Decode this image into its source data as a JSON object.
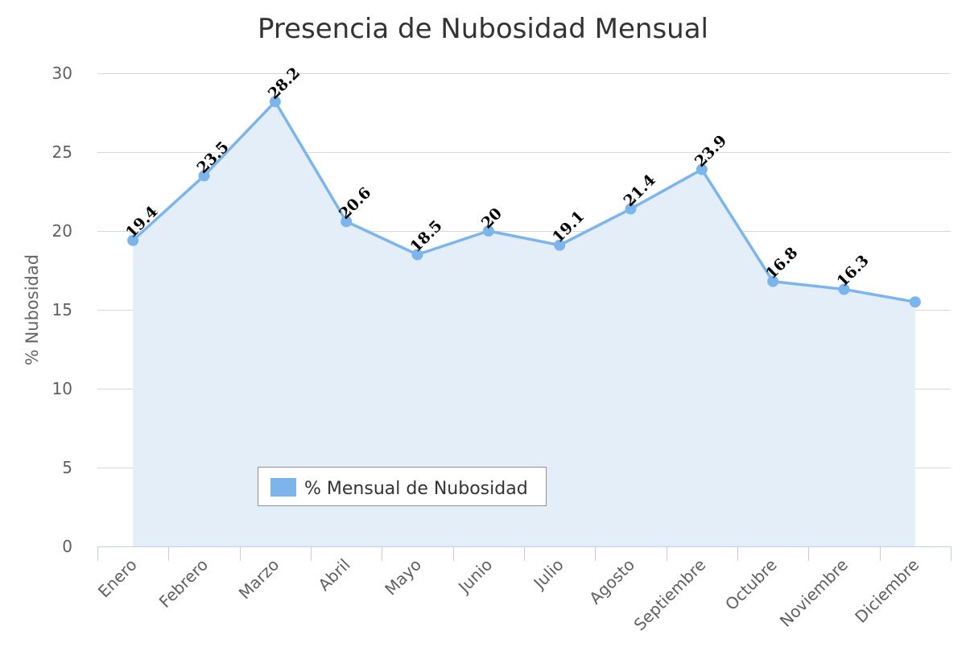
{
  "chart_data": {
    "type": "area",
    "title": "Presencia de Nubosidad Mensual",
    "xlabel": "",
    "ylabel": "% Nubosidad",
    "categories": [
      "Enero",
      "Febrero",
      "Marzo",
      "Abril",
      "Mayo",
      "Junio",
      "Julio",
      "Agosto",
      "Septiembre",
      "Octubre",
      "Noviembre",
      "Diciembre"
    ],
    "series": [
      {
        "name": "% Mensual de Nubosidad",
        "values": [
          19.4,
          23.5,
          28.2,
          20.6,
          18.5,
          20,
          19.1,
          21.4,
          23.9,
          16.8,
          16.3,
          15.5
        ],
        "data_labels": [
          "19.4",
          "23.5",
          "28.2",
          "20.6",
          "18.5",
          "20",
          "19.1",
          "21.4",
          "23.9",
          "16.8",
          "16.3",
          ""
        ]
      }
    ],
    "ylim": [
      0,
      30
    ],
    "yticks": [
      "0",
      "5",
      "10",
      "15",
      "20",
      "25",
      "30"
    ],
    "grid": true,
    "legend_position": "inside-bottom-left",
    "colors": {
      "line": "#7cb5ec",
      "area": "#e3eef9",
      "grid": "#d8d8d8",
      "axis": "#c0d0e0"
    }
  }
}
